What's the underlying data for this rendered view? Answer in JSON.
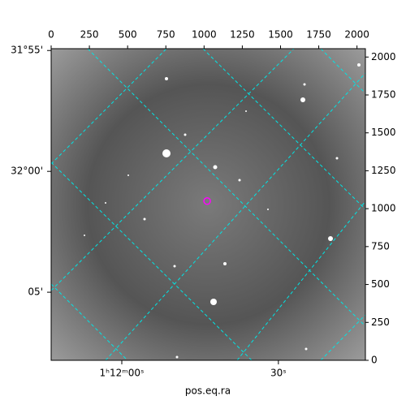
{
  "chart_data": {
    "type": "image",
    "xlabel": "pos.eq.ra",
    "xlim": [
      0,
      2055
    ],
    "ylim": [
      0,
      2055
    ],
    "xticks": [
      0,
      250,
      500,
      750,
      1000,
      1250,
      1500,
      1750,
      2000
    ],
    "yticks": [
      0,
      250,
      500,
      750,
      1000,
      1250,
      1500,
      1750,
      2000
    ],
    "wcs_xticks": [
      {
        "value": 462,
        "label": "1ʰ12ᵐ00ˢ"
      },
      {
        "value": 1486,
        "label": "30ˢ"
      }
    ],
    "wcs_yticks": [
      {
        "value": 2043,
        "label": "31°55'"
      },
      {
        "value": 1246,
        "label": "32°00'"
      },
      {
        "value": 449,
        "label": "05'"
      }
    ],
    "marker": {
      "x": 1020,
      "y": 1050,
      "color": "#ff00ff"
    },
    "grid_color": "#00e5e5"
  }
}
